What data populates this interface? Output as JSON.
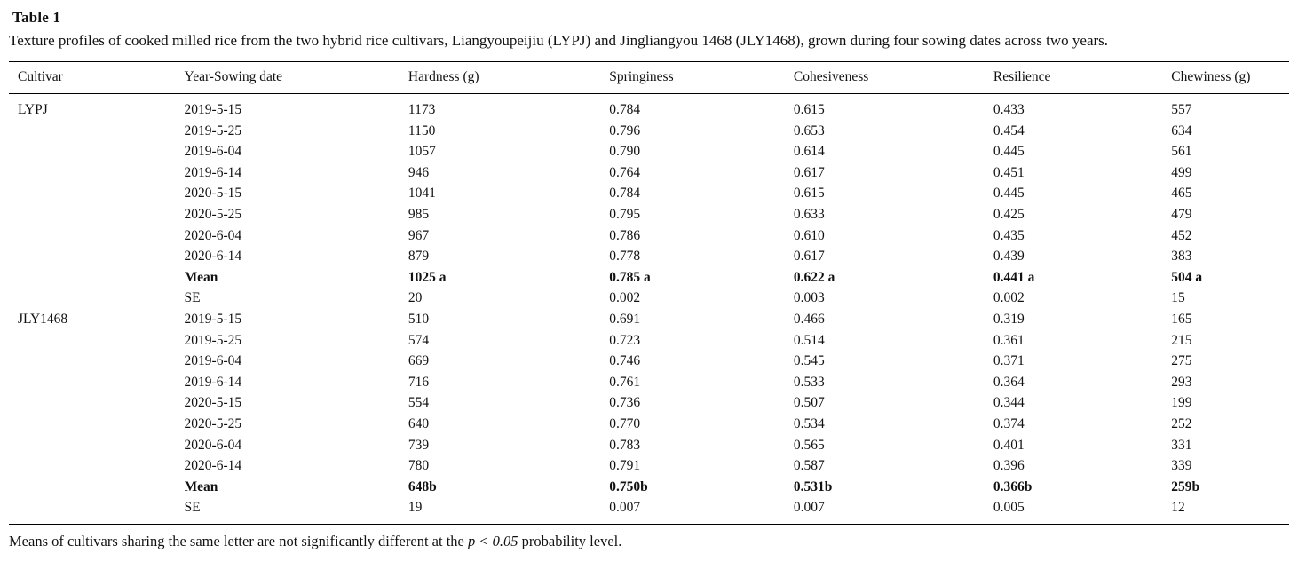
{
  "table": {
    "title": "Table 1",
    "caption": "Texture profiles of cooked milled rice from the two hybrid rice cultivars, Liangyoupeijiu (LYPJ) and Jingliangyou 1468 (JLY1468), grown during four sowing dates across two years.",
    "columns": [
      "Cultivar",
      "Year-Sowing date",
      "Hardness (g)",
      "Springiness",
      "Cohesiveness",
      "Resilience",
      "Chewiness (g)"
    ],
    "rows": [
      {
        "cultivar": "LYPJ",
        "date": "2019-5-15",
        "hardness": "1173",
        "springiness": "0.784",
        "cohesiveness": "0.615",
        "resilience": "0.433",
        "chewiness": "557",
        "bold": false
      },
      {
        "cultivar": "",
        "date": "2019-5-25",
        "hardness": "1150",
        "springiness": "0.796",
        "cohesiveness": "0.653",
        "resilience": "0.454",
        "chewiness": "634",
        "bold": false
      },
      {
        "cultivar": "",
        "date": "2019-6-04",
        "hardness": "1057",
        "springiness": "0.790",
        "cohesiveness": "0.614",
        "resilience": "0.445",
        "chewiness": "561",
        "bold": false
      },
      {
        "cultivar": "",
        "date": "2019-6-14",
        "hardness": "946",
        "springiness": "0.764",
        "cohesiveness": "0.617",
        "resilience": "0.451",
        "chewiness": "499",
        "bold": false
      },
      {
        "cultivar": "",
        "date": "2020-5-15",
        "hardness": "1041",
        "springiness": "0.784",
        "cohesiveness": "0.615",
        "resilience": "0.445",
        "chewiness": "465",
        "bold": false
      },
      {
        "cultivar": "",
        "date": "2020-5-25",
        "hardness": "985",
        "springiness": "0.795",
        "cohesiveness": "0.633",
        "resilience": "0.425",
        "chewiness": "479",
        "bold": false
      },
      {
        "cultivar": "",
        "date": "2020-6-04",
        "hardness": "967",
        "springiness": "0.786",
        "cohesiveness": "0.610",
        "resilience": "0.435",
        "chewiness": "452",
        "bold": false
      },
      {
        "cultivar": "",
        "date": "2020-6-14",
        "hardness": "879",
        "springiness": "0.778",
        "cohesiveness": "0.617",
        "resilience": "0.439",
        "chewiness": "383",
        "bold": false
      },
      {
        "cultivar": "",
        "date": "Mean",
        "hardness": "1025 a",
        "springiness": "0.785 a",
        "cohesiveness": "0.622 a",
        "resilience": "0.441 a",
        "chewiness": "504 a",
        "bold": true
      },
      {
        "cultivar": "",
        "date": "SE",
        "hardness": "20",
        "springiness": "0.002",
        "cohesiveness": "0.003",
        "resilience": "0.002",
        "chewiness": "15",
        "bold": false
      },
      {
        "cultivar": "JLY1468",
        "date": "2019-5-15",
        "hardness": "510",
        "springiness": "0.691",
        "cohesiveness": "0.466",
        "resilience": "0.319",
        "chewiness": "165",
        "bold": false
      },
      {
        "cultivar": "",
        "date": "2019-5-25",
        "hardness": "574",
        "springiness": "0.723",
        "cohesiveness": "0.514",
        "resilience": "0.361",
        "chewiness": "215",
        "bold": false
      },
      {
        "cultivar": "",
        "date": "2019-6-04",
        "hardness": "669",
        "springiness": "0.746",
        "cohesiveness": "0.545",
        "resilience": "0.371",
        "chewiness": "275",
        "bold": false
      },
      {
        "cultivar": "",
        "date": "2019-6-14",
        "hardness": "716",
        "springiness": "0.761",
        "cohesiveness": "0.533",
        "resilience": "0.364",
        "chewiness": "293",
        "bold": false
      },
      {
        "cultivar": "",
        "date": "2020-5-15",
        "hardness": "554",
        "springiness": "0.736",
        "cohesiveness": "0.507",
        "resilience": "0.344",
        "chewiness": "199",
        "bold": false
      },
      {
        "cultivar": "",
        "date": "2020-5-25",
        "hardness": "640",
        "springiness": "0.770",
        "cohesiveness": "0.534",
        "resilience": "0.374",
        "chewiness": "252",
        "bold": false
      },
      {
        "cultivar": "",
        "date": "2020-6-04",
        "hardness": "739",
        "springiness": "0.783",
        "cohesiveness": "0.565",
        "resilience": "0.401",
        "chewiness": "331",
        "bold": false
      },
      {
        "cultivar": "",
        "date": "2020-6-14",
        "hardness": "780",
        "springiness": "0.791",
        "cohesiveness": "0.587",
        "resilience": "0.396",
        "chewiness": "339",
        "bold": false
      },
      {
        "cultivar": "",
        "date": "Mean",
        "hardness": "648b",
        "springiness": "0.750b",
        "cohesiveness": "0.531b",
        "resilience": "0.366b",
        "chewiness": "259b",
        "bold": true
      },
      {
        "cultivar": "",
        "date": "SE",
        "hardness": "19",
        "springiness": "0.007",
        "cohesiveness": "0.007",
        "resilience": "0.005",
        "chewiness": "12",
        "bold": false
      }
    ],
    "footnote": {
      "prefix": "Means of cultivars sharing the same letter are not significantly different at the ",
      "italic": "p < 0.05",
      "suffix": " probability level."
    }
  }
}
